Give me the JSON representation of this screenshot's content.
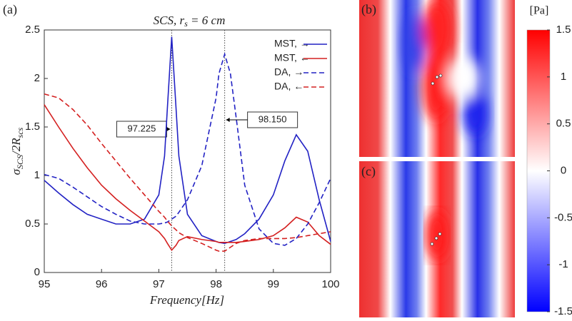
{
  "chart_data": [
    {
      "type": "line",
      "panel": "(a)",
      "title": [
        "SCS, r",
        "s",
        " = 6  cm"
      ],
      "xlabel": "Frequency[Hz]",
      "ylabel": [
        "σ",
        "SCS",
        "/2R",
        "scs"
      ],
      "x": [
        95,
        95.25,
        95.5,
        95.75,
        96,
        96.25,
        96.5,
        96.75,
        97,
        97.1,
        97.15,
        97.225,
        97.3,
        97.35,
        97.5,
        97.75,
        98,
        98.05,
        98.15,
        98.25,
        98.35,
        98.5,
        98.75,
        99,
        99.2,
        99.4,
        99.6,
        99.8,
        100
      ],
      "series": [
        {
          "name": "MST, →",
          "color": "#2222c4",
          "dash": false,
          "values": [
            0.95,
            0.82,
            0.7,
            0.6,
            0.55,
            0.5,
            0.5,
            0.55,
            0.8,
            1.2,
            1.7,
            2.43,
            1.7,
            1.2,
            0.6,
            0.38,
            0.32,
            0.31,
            0.3,
            0.32,
            0.34,
            0.4,
            0.55,
            0.8,
            1.15,
            1.42,
            1.25,
            0.75,
            0.32
          ]
        },
        {
          "name": "MST, ←",
          "color": "#d42020",
          "dash": false,
          "values": [
            1.73,
            1.5,
            1.28,
            1.08,
            0.9,
            0.76,
            0.64,
            0.53,
            0.42,
            0.35,
            0.3,
            0.23,
            0.28,
            0.33,
            0.37,
            0.34,
            0.32,
            0.31,
            0.31,
            0.31,
            0.31,
            0.32,
            0.34,
            0.38,
            0.46,
            0.57,
            0.52,
            0.38,
            0.29
          ]
        },
        {
          "name": "DA, →",
          "color": "#2222c4",
          "dash": true,
          "values": [
            1.01,
            0.97,
            0.88,
            0.78,
            0.68,
            0.6,
            0.53,
            0.5,
            0.5,
            0.51,
            0.52,
            0.55,
            0.58,
            0.62,
            0.75,
            1.1,
            1.8,
            2.05,
            2.25,
            2.05,
            1.6,
            0.9,
            0.45,
            0.3,
            0.28,
            0.35,
            0.5,
            0.72,
            0.97
          ]
        },
        {
          "name": "DA, ←",
          "color": "#d42020",
          "dash": true,
          "values": [
            1.84,
            1.8,
            1.68,
            1.52,
            1.33,
            1.15,
            0.97,
            0.8,
            0.63,
            0.57,
            0.53,
            0.48,
            0.44,
            0.41,
            0.36,
            0.3,
            0.23,
            0.22,
            0.22,
            0.26,
            0.3,
            0.33,
            0.35,
            0.35,
            0.35,
            0.36,
            0.38,
            0.4,
            0.42
          ]
        }
      ],
      "vlines": [
        97.225,
        {
          "value": 98.15,
          "label": "98.150"
        }
      ],
      "xlim": [
        95,
        100
      ],
      "xticks": [
        95,
        96,
        97,
        98,
        99,
        100
      ],
      "ylim": [
        0,
        2.5
      ],
      "yticks": [
        0,
        0.5,
        1,
        1.5,
        2,
        2.5
      ],
      "legend": "top-right"
    },
    {
      "type": "colorbar",
      "title": "[Pa]",
      "panels": [
        "(b)",
        "(c)"
      ],
      "ylim": [
        -1.5,
        1.5
      ],
      "yticks": [
        1.5,
        1,
        0.5,
        0,
        -0.5,
        -1,
        -1.5
      ],
      "colors": [
        "#0000ff",
        "#ffffff",
        "#ff0000"
      ]
    }
  ]
}
